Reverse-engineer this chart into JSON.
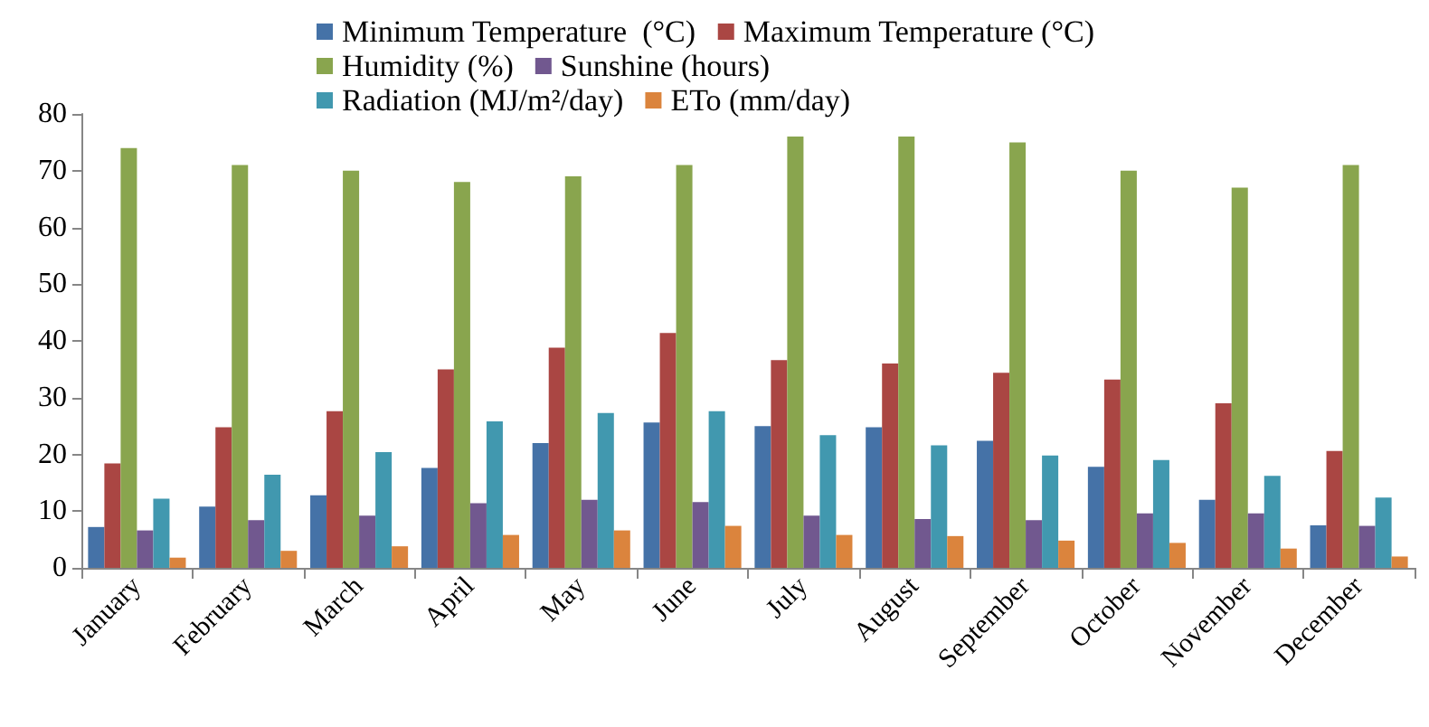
{
  "chart_data": {
    "type": "bar",
    "categories": [
      "January",
      "February",
      "March",
      "April",
      "May",
      "June",
      "July",
      "August",
      "September",
      "October",
      "November",
      "December"
    ],
    "series": [
      {
        "name": "Minimum Temperature  (°C)",
        "color": "#4572a7",
        "values": [
          7.2,
          10.8,
          12.8,
          17.6,
          22,
          25.6,
          25,
          24.8,
          22.4,
          17.8,
          12,
          7.5
        ]
      },
      {
        "name": "Maximum Temperature (°C)",
        "color": "#aa4643",
        "values": [
          18.4,
          24.8,
          27.6,
          35,
          38.8,
          41.4,
          36.6,
          36,
          34.4,
          33.2,
          29,
          20.6
        ]
      },
      {
        "name": "Humidity (%)",
        "color": "#89a54e",
        "values": [
          74,
          71,
          70,
          68,
          69,
          71,
          76,
          76,
          75,
          70,
          67,
          71
        ]
      },
      {
        "name": "Sunshine (hours)",
        "color": "#71588f",
        "values": [
          6.6,
          8.4,
          9.2,
          11.4,
          12,
          11.6,
          9.2,
          8.6,
          8.4,
          9.6,
          9.6,
          7.4
        ]
      },
      {
        "name": "Radiation (MJ/m²/day)",
        "color": "#4198af",
        "values": [
          12.2,
          16.4,
          20.4,
          25.8,
          27.3,
          27.6,
          23.4,
          21.6,
          19.8,
          19,
          16.2,
          12.4
        ]
      },
      {
        "name": "ETo (mm/day)",
        "color": "#db843d",
        "values": [
          1.8,
          3,
          3.8,
          5.8,
          6.6,
          7.4,
          5.8,
          5.6,
          4.8,
          4.4,
          3.4,
          2
        ]
      }
    ],
    "ylim": [
      0,
      80
    ],
    "yticks": [
      0,
      10,
      20,
      30,
      40,
      50,
      60,
      70,
      80
    ],
    "grid": false,
    "legend": "top"
  }
}
